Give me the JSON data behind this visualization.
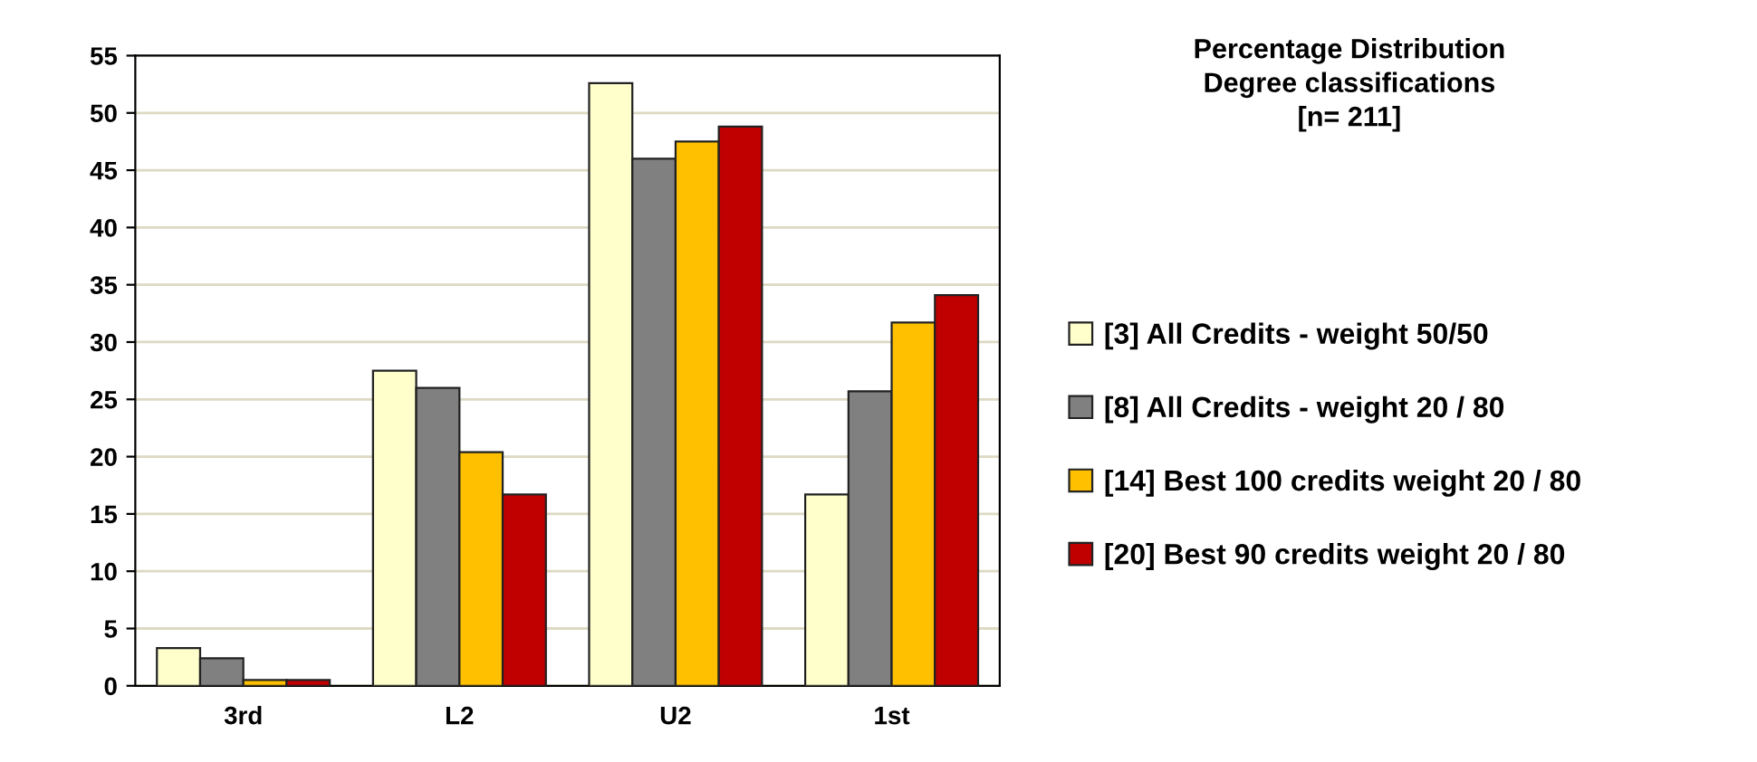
{
  "chart_data": {
    "type": "bar",
    "title": "Percentage Distribution\nDegree classifications\n[n= 211]",
    "categories": [
      "3rd",
      "L2",
      "U2",
      "1st"
    ],
    "series": [
      {
        "name": "[3] All Credits - weight 50/50",
        "color": "#ffffcc",
        "values": [
          3.3,
          27.5,
          52.6,
          16.7
        ]
      },
      {
        "name": "[8] All Credits - weight 20 / 80",
        "color": "#808080",
        "values": [
          2.4,
          26.0,
          46.0,
          25.7
        ]
      },
      {
        "name": "[14] Best 100 credits weight 20 / 80",
        "color": "#ffc000",
        "values": [
          0.5,
          20.4,
          47.5,
          31.7
        ]
      },
      {
        "name": "[20] Best 90 credits weight 20 / 80",
        "color": "#c00000",
        "values": [
          0.5,
          16.7,
          48.8,
          34.1
        ]
      }
    ],
    "ylim": [
      0,
      55
    ],
    "yticks": [
      0,
      5,
      10,
      15,
      20,
      25,
      30,
      35,
      40,
      45,
      50,
      55
    ],
    "grid": "y",
    "legend": "right"
  }
}
